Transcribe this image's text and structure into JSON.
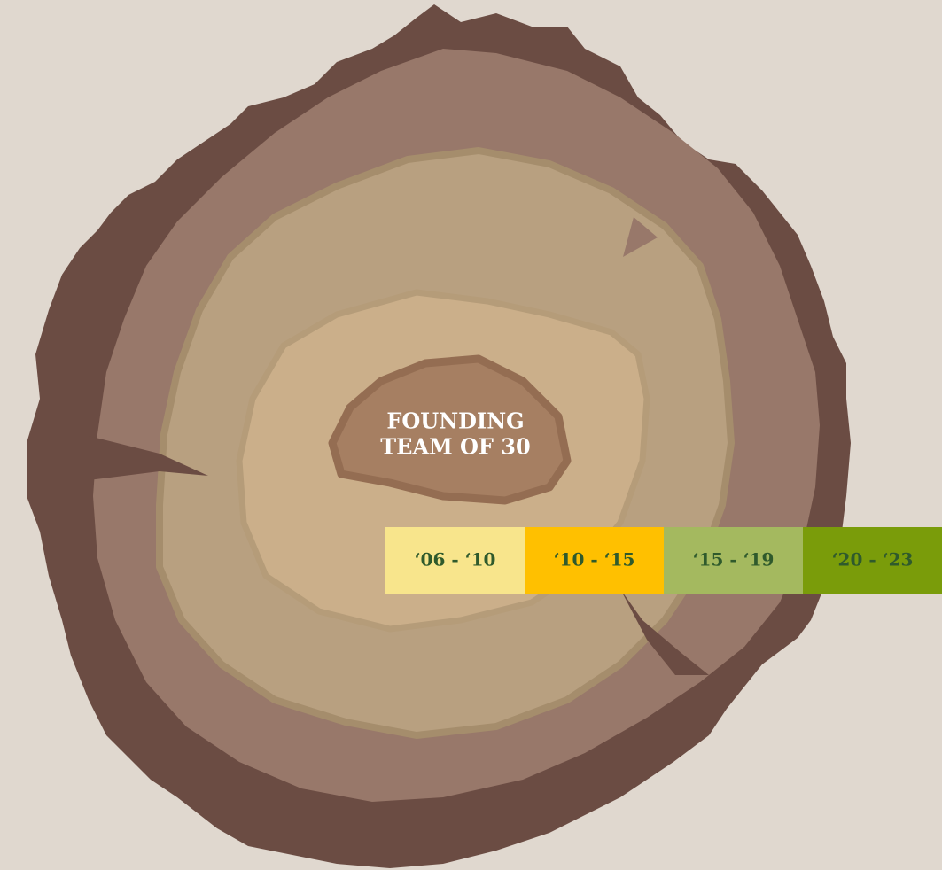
{
  "center": {
    "lines": [
      "FOUNDING",
      "TEAM OF 30"
    ]
  },
  "tabs": [
    {
      "label": "‘06 - ‘10"
    },
    {
      "label": "‘10 - ‘15"
    },
    {
      "label": "‘15 - ‘19"
    },
    {
      "label": "‘20 - ‘23"
    }
  ]
}
